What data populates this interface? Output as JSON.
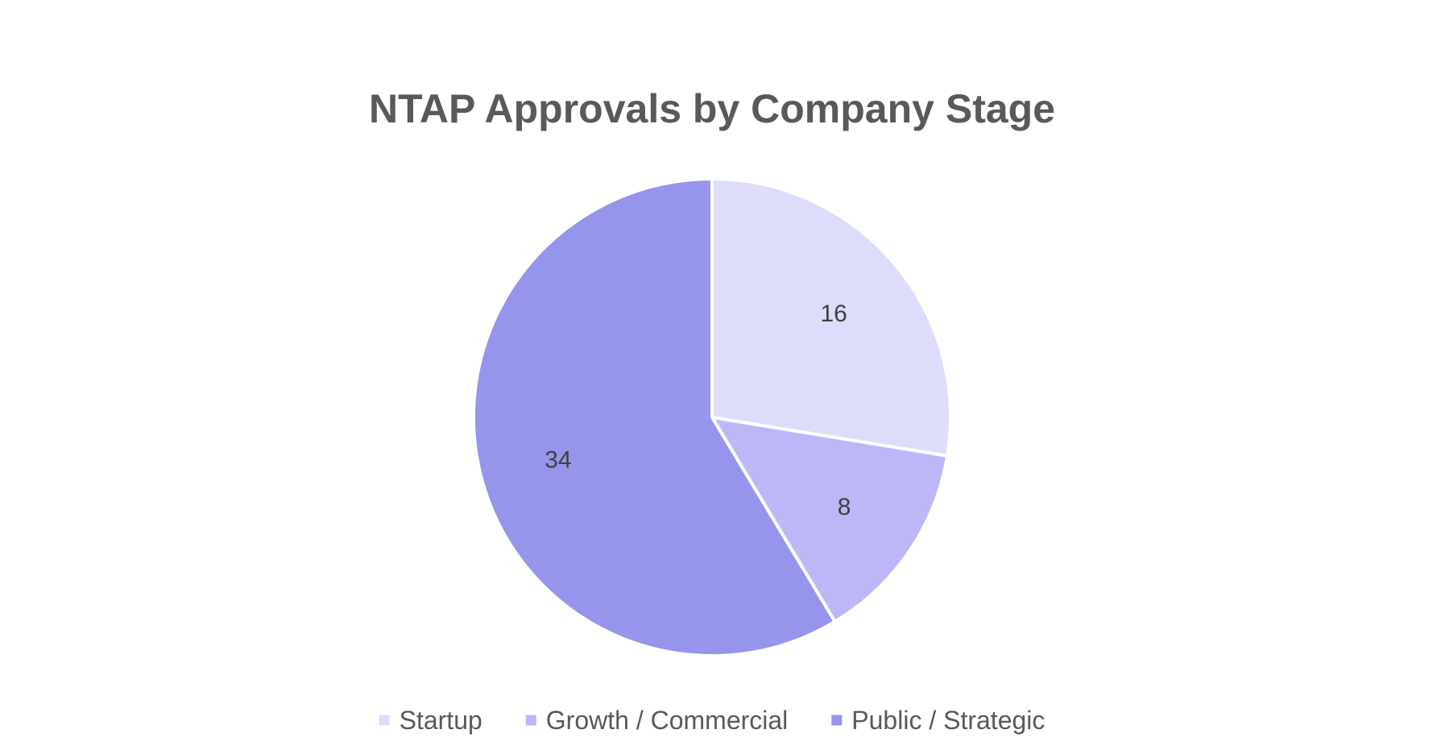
{
  "chart_data": {
    "type": "pie",
    "title": "NTAP Approvals by Company Stage",
    "categories": [
      "Startup",
      "Growth / Commercial",
      "Public / Strategic"
    ],
    "values": [
      16,
      8,
      34
    ],
    "colors": [
      "#dedcfb",
      "#bcb8f7",
      "#9794ec"
    ],
    "start_angle_deg": 0,
    "direction": "clockwise",
    "data_labels": [
      "16",
      "8",
      "34"
    ],
    "legend_position": "bottom",
    "slice_border_color": "#ffffff"
  }
}
